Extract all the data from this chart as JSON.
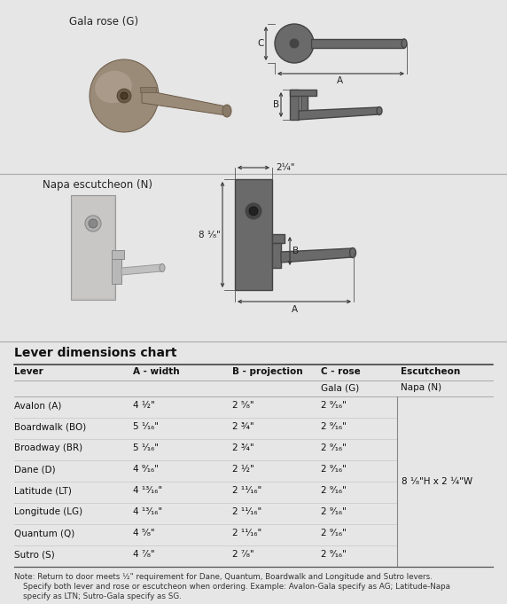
{
  "bg_color": "#e6e6e6",
  "draw_color": "#6a6a6a",
  "draw_edge": "#444444",
  "text_dark": "#1a1a1a",
  "text_med": "#444444",
  "section1_label": "Gala rose (G)",
  "section2_label": "Napa escutcheon (N)",
  "chart_title": "Lever dimensions chart",
  "col_headers": [
    "Lever",
    "A - width",
    "B - projection",
    "C - rose",
    "Escutcheon"
  ],
  "sub_col3": "Gala (G)",
  "sub_col4": "Napa (N)",
  "rows": [
    [
      "Avalon (A)",
      "4 ½\"",
      "2 ⁵⁄₈\"",
      "2 ⁹⁄₁₆\""
    ],
    [
      "Boardwalk (BO)",
      "5 ¹⁄₁₆\"",
      "2 ¾\"",
      "2 ⁹⁄₁₆\""
    ],
    [
      "Broadway (BR)",
      "5 ¹⁄₁₆\"",
      "2 ¾\"",
      "2 ⁹⁄₁₆\""
    ],
    [
      "Dane (D)",
      "4 ⁹⁄₁₆\"",
      "2 ½\"",
      "2 ⁹⁄₁₆\""
    ],
    [
      "Latitude (LT)",
      "4 ¹³⁄₁₆\"",
      "2 ¹¹⁄₁₆\"",
      "2 ⁹⁄₁₆\""
    ],
    [
      "Longitude (LG)",
      "4 ¹³⁄₁₆\"",
      "2 ¹¹⁄₁₆\"",
      "2 ⁹⁄₁₆\""
    ],
    [
      "Quantum (Q)",
      "4 ⁵⁄₈\"",
      "2 ¹¹⁄₁₆\"",
      "2 ⁹⁄₁₆\""
    ],
    [
      "Sutro (S)",
      "4 ⁷⁄₈\"",
      "2 ⁷⁄₈\"",
      "2 ⁹⁄₁₆\""
    ]
  ],
  "escutcheon_label": "8 ¹⁄₈\"H x 2 ¼\"W",
  "note_line1": "Note: Return to door meets ½\" requirement for Dane, Quantum, Boardwalk and Longitude and Sutro levers.",
  "note_line2": "Specify both lever and rose or escutcheon when ordering. Example: Avalon-Gala specify as AG; Latitude-Napa",
  "note_line3": "specify as LTN; Sutro-Gala specify as SG.",
  "napa_dim_h": "8 ¹⁄₈\"",
  "napa_dim_w": "2¼\"",
  "dim_B": "B",
  "dim_A": "A",
  "dim_C": "C",
  "rose_photo_color": "#9a8a78",
  "rose_photo_highlight": "#b0a090",
  "napa_photo_color": "#c0bfbe",
  "napa_photo_dark": "#a8a7a5"
}
